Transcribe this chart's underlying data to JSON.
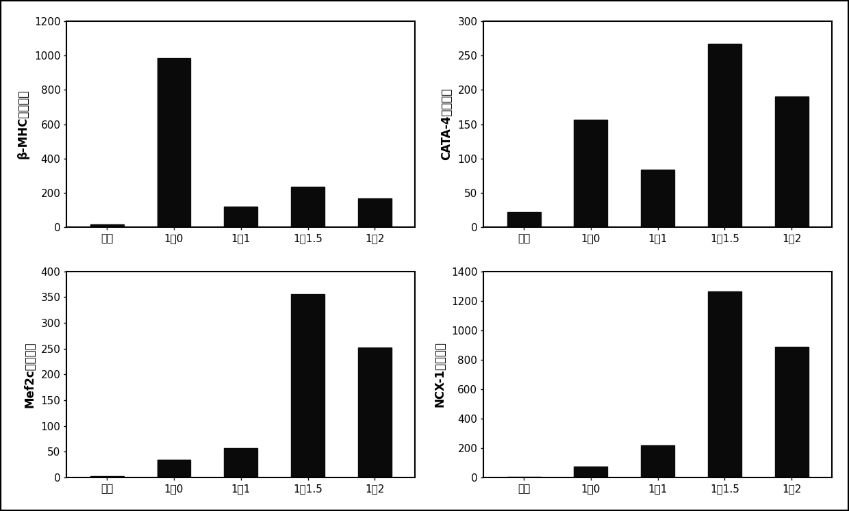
{
  "categories": [
    "对照",
    "1：0",
    "1：1",
    "1：1.5",
    "1：2"
  ],
  "charts": [
    {
      "ylabel": "β-MHC表达水平",
      "values": [
        15,
        985,
        120,
        235,
        168
      ],
      "ylim": [
        0,
        1200
      ],
      "yticks": [
        0,
        200,
        400,
        600,
        800,
        1000,
        1200
      ]
    },
    {
      "ylabel": "CATA-4表达水平",
      "values": [
        22,
        157,
        84,
        267,
        190
      ],
      "ylim": [
        0,
        300
      ],
      "yticks": [
        0,
        50,
        100,
        150,
        200,
        250,
        300
      ]
    },
    {
      "ylabel": "Mef2c表达水平",
      "values": [
        3,
        35,
        57,
        356,
        253
      ],
      "ylim": [
        0,
        400
      ],
      "yticks": [
        0,
        50,
        100,
        150,
        200,
        250,
        300,
        350,
        400
      ]
    },
    {
      "ylabel": "NCX-1表达水平",
      "values": [
        5,
        75,
        220,
        1265,
        890
      ],
      "ylim": [
        0,
        1400
      ],
      "yticks": [
        0,
        200,
        400,
        600,
        800,
        1000,
        1200,
        1400
      ]
    }
  ],
  "bar_color": "#0a0a0a",
  "bar_width": 0.5,
  "background_color": "#ffffff",
  "tick_fontsize": 11,
  "ylabel_fontsize": 12,
  "xlabel_fontsize": 11,
  "border_color": "#000000",
  "outer_border_linewidth": 2.0
}
